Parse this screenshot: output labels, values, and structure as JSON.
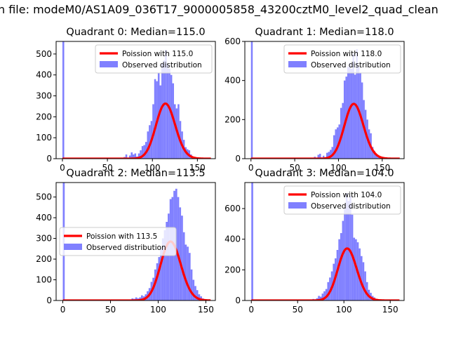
{
  "figure": {
    "title": "n file: modeM0/AS1A09_036T17_9000005858_43200cztM0_level2_quad_clean"
  },
  "colors": {
    "hist": "#8080ff",
    "poisson": "#ff0000",
    "axis": "#000000",
    "background": "#ffffff"
  },
  "chart_data": [
    {
      "type": "bar",
      "title": "Quadrant 0: Median=115.0",
      "xlim": [
        -7,
        170
      ],
      "ylim": [
        0,
        560
      ],
      "xticks": [
        0,
        50,
        100,
        150
      ],
      "yticks": [
        0,
        100,
        200,
        300,
        400,
        500
      ],
      "legend_position": "top-right",
      "series": [
        {
          "name": "Poission with 115.0",
          "kind": "line",
          "mu": 115.0
        },
        {
          "name": "Observed distribution",
          "kind": "hist",
          "bins": [
            {
              "x": 0,
              "y": 560
            },
            {
              "x": 68,
              "y": 8
            },
            {
              "x": 70,
              "y": 20
            },
            {
              "x": 72,
              "y": 5
            },
            {
              "x": 74,
              "y": 15
            },
            {
              "x": 76,
              "y": 30
            },
            {
              "x": 78,
              "y": 20
            },
            {
              "x": 80,
              "y": 25
            },
            {
              "x": 82,
              "y": 10
            },
            {
              "x": 84,
              "y": 25
            },
            {
              "x": 86,
              "y": 40
            },
            {
              "x": 88,
              "y": 60
            },
            {
              "x": 90,
              "y": 65
            },
            {
              "x": 92,
              "y": 80
            },
            {
              "x": 94,
              "y": 130
            },
            {
              "x": 96,
              "y": 160
            },
            {
              "x": 98,
              "y": 180
            },
            {
              "x": 100,
              "y": 260
            },
            {
              "x": 102,
              "y": 380
            },
            {
              "x": 104,
              "y": 370
            },
            {
              "x": 106,
              "y": 410
            },
            {
              "x": 108,
              "y": 350
            },
            {
              "x": 110,
              "y": 455
            },
            {
              "x": 112,
              "y": 470
            },
            {
              "x": 114,
              "y": 520
            },
            {
              "x": 116,
              "y": 450
            },
            {
              "x": 118,
              "y": 430
            },
            {
              "x": 120,
              "y": 400
            },
            {
              "x": 122,
              "y": 360
            },
            {
              "x": 124,
              "y": 260
            },
            {
              "x": 126,
              "y": 240
            },
            {
              "x": 128,
              "y": 260
            },
            {
              "x": 130,
              "y": 180
            },
            {
              "x": 132,
              "y": 130
            },
            {
              "x": 134,
              "y": 90
            },
            {
              "x": 136,
              "y": 55
            },
            {
              "x": 138,
              "y": 45
            },
            {
              "x": 140,
              "y": 40
            },
            {
              "x": 142,
              "y": 20
            },
            {
              "x": 144,
              "y": 10
            },
            {
              "x": 146,
              "y": 8
            },
            {
              "x": 148,
              "y": 5
            },
            {
              "x": 150,
              "y": 3
            }
          ],
          "bin_width": 2
        }
      ]
    },
    {
      "type": "bar",
      "title": "Quadrant 1: Median=118.0",
      "xlim": [
        -7,
        175
      ],
      "ylim": [
        0,
        600
      ],
      "xticks": [
        0,
        50,
        100,
        150
      ],
      "yticks": [
        0,
        200,
        400,
        600
      ],
      "legend_position": "top-right",
      "series": [
        {
          "name": "Poission with 118.0",
          "kind": "line",
          "mu": 118.0
        },
        {
          "name": "Observed distribution",
          "kind": "hist",
          "bins": [
            {
              "x": 0,
              "y": 600
            },
            {
              "x": 72,
              "y": 10
            },
            {
              "x": 76,
              "y": 20
            },
            {
              "x": 78,
              "y": 25
            },
            {
              "x": 82,
              "y": 15
            },
            {
              "x": 86,
              "y": 30
            },
            {
              "x": 88,
              "y": 35
            },
            {
              "x": 90,
              "y": 45
            },
            {
              "x": 92,
              "y": 60
            },
            {
              "x": 94,
              "y": 120
            },
            {
              "x": 96,
              "y": 150
            },
            {
              "x": 98,
              "y": 160
            },
            {
              "x": 100,
              "y": 175
            },
            {
              "x": 102,
              "y": 260
            },
            {
              "x": 104,
              "y": 285
            },
            {
              "x": 106,
              "y": 400
            },
            {
              "x": 108,
              "y": 420
            },
            {
              "x": 110,
              "y": 470
            },
            {
              "x": 112,
              "y": 490
            },
            {
              "x": 114,
              "y": 460
            },
            {
              "x": 116,
              "y": 540
            },
            {
              "x": 118,
              "y": 430
            },
            {
              "x": 120,
              "y": 560
            },
            {
              "x": 122,
              "y": 470
            },
            {
              "x": 124,
              "y": 440
            },
            {
              "x": 126,
              "y": 390
            },
            {
              "x": 128,
              "y": 300
            },
            {
              "x": 130,
              "y": 250
            },
            {
              "x": 132,
              "y": 200
            },
            {
              "x": 134,
              "y": 150
            },
            {
              "x": 136,
              "y": 130
            },
            {
              "x": 138,
              "y": 60
            },
            {
              "x": 140,
              "y": 40
            },
            {
              "x": 142,
              "y": 20
            },
            {
              "x": 144,
              "y": 15
            },
            {
              "x": 146,
              "y": 10
            },
            {
              "x": 148,
              "y": 5
            }
          ],
          "bin_width": 2
        }
      ]
    },
    {
      "type": "bar",
      "title": "Quadrant 2: Median=113.5",
      "xlim": [
        -7,
        160
      ],
      "ylim": [
        0,
        570
      ],
      "xticks": [
        0,
        50,
        100,
        150
      ],
      "yticks": [
        0,
        100,
        200,
        300,
        400,
        500
      ],
      "legend_position": "center-left",
      "series": [
        {
          "name": "Poission with 113.5",
          "kind": "line",
          "mu": 113.5
        },
        {
          "name": "Observed distribution",
          "kind": "hist",
          "bins": [
            {
              "x": 0,
              "y": 570
            },
            {
              "x": 72,
              "y": 10
            },
            {
              "x": 74,
              "y": 8
            },
            {
              "x": 76,
              "y": 15
            },
            {
              "x": 78,
              "y": 10
            },
            {
              "x": 80,
              "y": 15
            },
            {
              "x": 82,
              "y": 25
            },
            {
              "x": 84,
              "y": 20
            },
            {
              "x": 86,
              "y": 30
            },
            {
              "x": 88,
              "y": 45
            },
            {
              "x": 90,
              "y": 60
            },
            {
              "x": 92,
              "y": 90
            },
            {
              "x": 94,
              "y": 110
            },
            {
              "x": 96,
              "y": 150
            },
            {
              "x": 98,
              "y": 180
            },
            {
              "x": 100,
              "y": 210
            },
            {
              "x": 102,
              "y": 250
            },
            {
              "x": 104,
              "y": 300
            },
            {
              "x": 106,
              "y": 340
            },
            {
              "x": 108,
              "y": 380
            },
            {
              "x": 110,
              "y": 420
            },
            {
              "x": 112,
              "y": 490
            },
            {
              "x": 114,
              "y": 500
            },
            {
              "x": 116,
              "y": 530
            },
            {
              "x": 118,
              "y": 540
            },
            {
              "x": 120,
              "y": 500
            },
            {
              "x": 122,
              "y": 450
            },
            {
              "x": 124,
              "y": 410
            },
            {
              "x": 126,
              "y": 330
            },
            {
              "x": 128,
              "y": 270
            },
            {
              "x": 130,
              "y": 260
            },
            {
              "x": 132,
              "y": 230
            },
            {
              "x": 134,
              "y": 150
            },
            {
              "x": 136,
              "y": 100
            },
            {
              "x": 138,
              "y": 70
            },
            {
              "x": 140,
              "y": 50
            },
            {
              "x": 142,
              "y": 30
            },
            {
              "x": 144,
              "y": 20
            },
            {
              "x": 146,
              "y": 10
            },
            {
              "x": 148,
              "y": 5
            }
          ],
          "bin_width": 2
        }
      ]
    },
    {
      "type": "bar",
      "title": "Quadrant 3: Median=104.0",
      "xlim": [
        -7,
        165
      ],
      "ylim": [
        0,
        770
      ],
      "xticks": [
        0,
        50,
        100,
        150
      ],
      "yticks": [
        0,
        200,
        400,
        600
      ],
      "legend_position": "top-right",
      "series": [
        {
          "name": "Poission with 104.0",
          "kind": "line",
          "mu": 104.0
        },
        {
          "name": "Observed distribution",
          "kind": "hist",
          "bins": [
            {
              "x": 0,
              "y": 770
            },
            {
              "x": 62,
              "y": 5
            },
            {
              "x": 66,
              "y": 10
            },
            {
              "x": 70,
              "y": 15
            },
            {
              "x": 72,
              "y": 30
            },
            {
              "x": 74,
              "y": 25
            },
            {
              "x": 76,
              "y": 45
            },
            {
              "x": 78,
              "y": 60
            },
            {
              "x": 80,
              "y": 75
            },
            {
              "x": 82,
              "y": 120
            },
            {
              "x": 84,
              "y": 150
            },
            {
              "x": 86,
              "y": 190
            },
            {
              "x": 88,
              "y": 240
            },
            {
              "x": 90,
              "y": 275
            },
            {
              "x": 92,
              "y": 330
            },
            {
              "x": 94,
              "y": 400
            },
            {
              "x": 96,
              "y": 440
            },
            {
              "x": 98,
              "y": 520
            },
            {
              "x": 100,
              "y": 600
            },
            {
              "x": 102,
              "y": 700
            },
            {
              "x": 104,
              "y": 650
            },
            {
              "x": 106,
              "y": 680
            },
            {
              "x": 108,
              "y": 560
            },
            {
              "x": 110,
              "y": 410
            },
            {
              "x": 112,
              "y": 400
            },
            {
              "x": 114,
              "y": 380
            },
            {
              "x": 116,
              "y": 340
            },
            {
              "x": 118,
              "y": 290
            },
            {
              "x": 120,
              "y": 250
            },
            {
              "x": 122,
              "y": 190
            },
            {
              "x": 124,
              "y": 120
            },
            {
              "x": 126,
              "y": 70
            },
            {
              "x": 128,
              "y": 50
            },
            {
              "x": 130,
              "y": 30
            },
            {
              "x": 132,
              "y": 20
            },
            {
              "x": 134,
              "y": 10
            },
            {
              "x": 136,
              "y": 5
            }
          ],
          "bin_width": 2
        }
      ]
    }
  ]
}
